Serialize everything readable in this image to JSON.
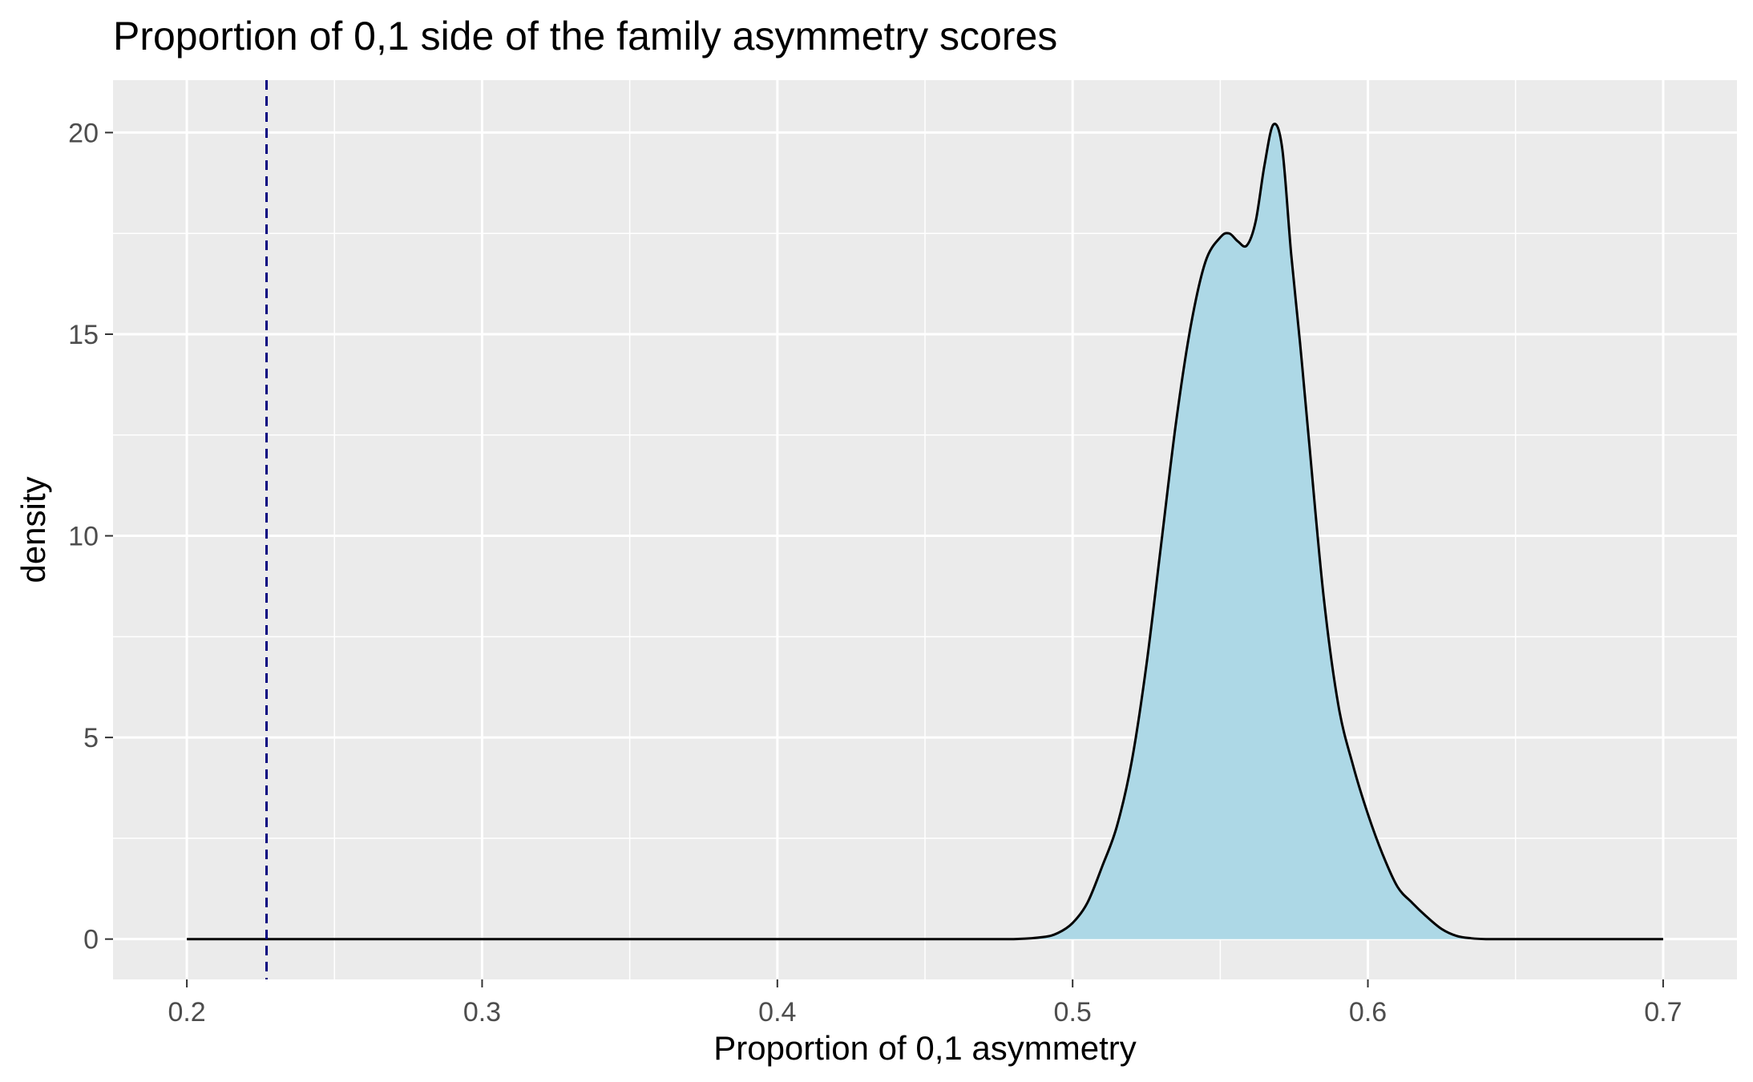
{
  "chart_data": {
    "type": "area",
    "title": "Proportion of 0,1 side of the family asymmetry scores",
    "xlabel": "Proportion of 0,1 asymmetry",
    "ylabel": "density",
    "xlim": [
      0.175,
      0.725
    ],
    "ylim": [
      -1.0,
      21.3
    ],
    "x_ticks": [
      0.2,
      0.3,
      0.4,
      0.5,
      0.6,
      0.7
    ],
    "x_tick_labels": [
      "0.2",
      "0.3",
      "0.4",
      "0.5",
      "0.6",
      "0.7"
    ],
    "y_ticks": [
      0,
      5,
      10,
      15,
      20
    ],
    "y_tick_labels": [
      "0",
      "5",
      "10",
      "15",
      "20"
    ],
    "grid": true,
    "legend": "none",
    "colors": {
      "panel": "#ebebeb",
      "grid": "#ffffff",
      "fill": "#add8e6",
      "line": "#000000",
      "reference_line": "#000080"
    },
    "reference_line": {
      "x": 0.227,
      "style": "dashed"
    },
    "series": [
      {
        "x": [
          0.2,
          0.3,
          0.4,
          0.46,
          0.48,
          0.49,
          0.495,
          0.5,
          0.505,
          0.51,
          0.515,
          0.52,
          0.525,
          0.53,
          0.535,
          0.54,
          0.545,
          0.55,
          0.553,
          0.556,
          0.559,
          0.562,
          0.565,
          0.568,
          0.571,
          0.574,
          0.577,
          0.58,
          0.585,
          0.59,
          0.595,
          0.6,
          0.605,
          0.61,
          0.615,
          0.62,
          0.625,
          0.63,
          0.635,
          0.64,
          0.65,
          0.7
        ],
        "y": [
          0,
          0,
          0,
          0,
          0,
          0.05,
          0.15,
          0.4,
          0.9,
          1.8,
          2.8,
          4.4,
          6.8,
          9.8,
          12.8,
          15.2,
          16.8,
          17.4,
          17.5,
          17.3,
          17.2,
          17.8,
          19.2,
          20.2,
          19.6,
          17.0,
          14.8,
          12.4,
          8.5,
          5.8,
          4.3,
          3.1,
          2.1,
          1.3,
          0.9,
          0.55,
          0.25,
          0.08,
          0.02,
          0,
          0,
          0
        ]
      }
    ]
  }
}
